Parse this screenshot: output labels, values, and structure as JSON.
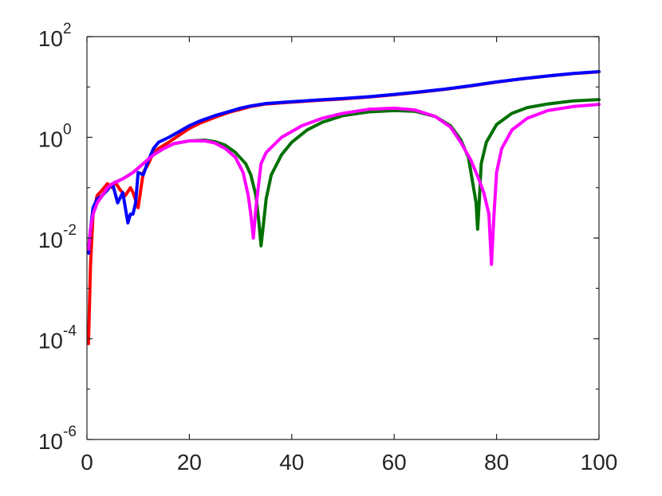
{
  "chart_data": {
    "type": "line",
    "title": "",
    "xlabel": "",
    "ylabel": "",
    "xlim": [
      0,
      100
    ],
    "ylim": [
      1e-06,
      100
    ],
    "yscale": "log",
    "grid": false,
    "x_ticks": [
      "0",
      "20",
      "40",
      "60",
      "80",
      "100"
    ],
    "y_ticks": [
      {
        "base": "10",
        "exp": "-6",
        "value": 1e-06
      },
      {
        "base": "10",
        "exp": "-4",
        "value": 0.0001
      },
      {
        "base": "10",
        "exp": "-2",
        "value": 0.01
      },
      {
        "base": "10",
        "exp": "0",
        "value": 1
      },
      {
        "base": "10",
        "exp": "2",
        "value": 100
      }
    ],
    "series": [
      {
        "color": "#ff0000",
        "points": [
          [
            0.3,
            8e-05
          ],
          [
            0.7,
            0.003
          ],
          [
            1.2,
            0.03
          ],
          [
            2,
            0.07
          ],
          [
            3,
            0.09
          ],
          [
            4,
            0.12
          ],
          [
            5,
            0.1
          ],
          [
            5.5,
            0.13
          ],
          [
            6.5,
            0.09
          ],
          [
            7.5,
            0.07
          ],
          [
            8.5,
            0.1
          ],
          [
            9,
            0.08
          ],
          [
            10,
            0.04
          ],
          [
            11,
            0.2
          ],
          [
            12,
            0.3
          ],
          [
            13,
            0.5
          ],
          [
            14,
            0.6
          ],
          [
            16,
            0.8
          ],
          [
            18,
            1.1
          ],
          [
            20,
            1.5
          ],
          [
            22,
            1.9
          ],
          [
            25,
            2.5
          ],
          [
            28,
            3.2
          ],
          [
            30,
            3.6
          ],
          [
            32,
            4.1
          ],
          [
            35,
            4.6
          ],
          [
            40,
            5.0
          ],
          [
            45,
            5.4
          ],
          [
            50,
            5.8
          ],
          [
            55,
            6.3
          ],
          [
            60,
            7.0
          ],
          [
            65,
            7.9
          ],
          [
            70,
            9.0
          ],
          [
            75,
            10.5
          ],
          [
            80,
            12.5
          ],
          [
            85,
            14.5
          ],
          [
            90,
            16.5
          ],
          [
            95,
            18.5
          ],
          [
            100,
            20
          ]
        ]
      },
      {
        "color": "#0000ff",
        "points": [
          [
            0.3,
            0.005
          ],
          [
            0.7,
            0.015
          ],
          [
            1.2,
            0.04
          ],
          [
            2,
            0.06
          ],
          [
            3,
            0.07
          ],
          [
            4,
            0.09
          ],
          [
            5,
            0.12
          ],
          [
            6,
            0.05
          ],
          [
            7,
            0.08
          ],
          [
            7.5,
            0.04
          ],
          [
            8,
            0.02
          ],
          [
            8.5,
            0.03
          ],
          [
            9,
            0.03
          ],
          [
            9.5,
            0.05
          ],
          [
            10,
            0.2
          ],
          [
            11,
            0.18
          ],
          [
            12,
            0.35
          ],
          [
            13,
            0.6
          ],
          [
            14,
            0.8
          ],
          [
            16,
            1.0
          ],
          [
            18,
            1.3
          ],
          [
            20,
            1.7
          ],
          [
            22,
            2.1
          ],
          [
            25,
            2.7
          ],
          [
            28,
            3.3
          ],
          [
            30,
            3.8
          ],
          [
            32,
            4.2
          ],
          [
            35,
            4.7
          ],
          [
            40,
            5.1
          ],
          [
            45,
            5.5
          ],
          [
            50,
            5.9
          ],
          [
            55,
            6.4
          ],
          [
            60,
            7.1
          ],
          [
            65,
            8.0
          ],
          [
            70,
            9.1
          ],
          [
            75,
            10.6
          ],
          [
            80,
            12.6
          ],
          [
            85,
            14.6
          ],
          [
            90,
            16.6
          ],
          [
            95,
            18.6
          ],
          [
            100,
            20.2
          ]
        ]
      },
      {
        "color": "#007000",
        "points": [
          [
            0.3,
            0.006
          ],
          [
            0.7,
            0.015
          ],
          [
            1.2,
            0.03
          ],
          [
            2,
            0.05
          ],
          [
            3,
            0.07
          ],
          [
            4,
            0.1
          ],
          [
            5,
            0.12
          ],
          [
            7,
            0.15
          ],
          [
            9,
            0.2
          ],
          [
            11,
            0.3
          ],
          [
            13,
            0.45
          ],
          [
            15,
            0.6
          ],
          [
            17,
            0.75
          ],
          [
            20,
            0.85
          ],
          [
            23,
            0.88
          ],
          [
            25,
            0.82
          ],
          [
            27,
            0.7
          ],
          [
            29,
            0.5
          ],
          [
            31,
            0.3
          ],
          [
            32,
            0.18
          ],
          [
            33,
            0.07
          ],
          [
            33.6,
            0.02
          ],
          [
            34,
            0.007
          ],
          [
            34.5,
            0.02
          ],
          [
            35,
            0.06
          ],
          [
            36,
            0.18
          ],
          [
            38,
            0.45
          ],
          [
            40,
            0.8
          ],
          [
            43,
            1.4
          ],
          [
            46,
            2.0
          ],
          [
            50,
            2.7
          ],
          [
            55,
            3.2
          ],
          [
            60,
            3.4
          ],
          [
            64,
            3.3
          ],
          [
            68,
            2.6
          ],
          [
            71,
            1.7
          ],
          [
            73,
            0.9
          ],
          [
            74.5,
            0.4
          ],
          [
            75.5,
            0.1
          ],
          [
            76,
            0.05
          ],
          [
            76.3,
            0.015
          ],
          [
            76.6,
            0.05
          ],
          [
            77,
            0.3
          ],
          [
            78,
            0.8
          ],
          [
            80,
            1.8
          ],
          [
            83,
            3.0
          ],
          [
            86,
            3.9
          ],
          [
            90,
            4.6
          ],
          [
            95,
            5.3
          ],
          [
            100,
            5.6
          ]
        ]
      },
      {
        "color": "#ff00ff",
        "points": [
          [
            0.3,
            0.006
          ],
          [
            0.7,
            0.015
          ],
          [
            1.2,
            0.03
          ],
          [
            2,
            0.05
          ],
          [
            3,
            0.07
          ],
          [
            4,
            0.1
          ],
          [
            5,
            0.12
          ],
          [
            7,
            0.15
          ],
          [
            9,
            0.2
          ],
          [
            11,
            0.3
          ],
          [
            13,
            0.45
          ],
          [
            15,
            0.6
          ],
          [
            17,
            0.75
          ],
          [
            20,
            0.85
          ],
          [
            23,
            0.85
          ],
          [
            25,
            0.77
          ],
          [
            27,
            0.6
          ],
          [
            29,
            0.4
          ],
          [
            30.5,
            0.2
          ],
          [
            31.5,
            0.07
          ],
          [
            32,
            0.03
          ],
          [
            32.5,
            0.01
          ],
          [
            33,
            0.04
          ],
          [
            34,
            0.3
          ],
          [
            35,
            0.5
          ],
          [
            38,
            1.0
          ],
          [
            42,
            1.7
          ],
          [
            46,
            2.4
          ],
          [
            50,
            3.0
          ],
          [
            55,
            3.6
          ],
          [
            60,
            3.8
          ],
          [
            64,
            3.5
          ],
          [
            68,
            2.6
          ],
          [
            71,
            1.6
          ],
          [
            73,
            0.8
          ],
          [
            75,
            0.35
          ],
          [
            76.5,
            0.15
          ],
          [
            77.5,
            0.08
          ],
          [
            78.5,
            0.03
          ],
          [
            79,
            0.003
          ],
          [
            79.5,
            0.03
          ],
          [
            80,
            0.2
          ],
          [
            81,
            0.6
          ],
          [
            83,
            1.4
          ],
          [
            86,
            2.4
          ],
          [
            90,
            3.4
          ],
          [
            95,
            4.1
          ],
          [
            100,
            4.5
          ]
        ]
      }
    ]
  }
}
